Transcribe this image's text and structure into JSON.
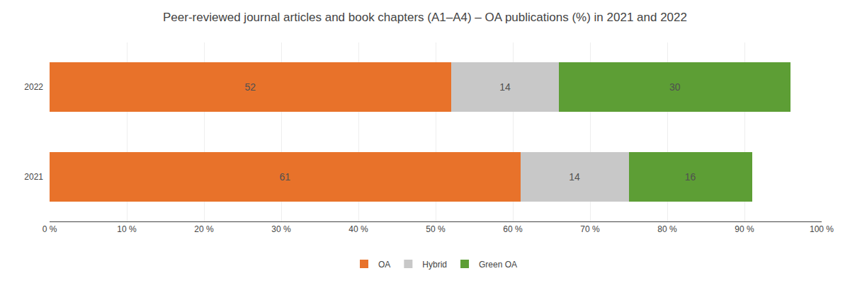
{
  "chart_data": {
    "type": "bar",
    "orientation": "horizontal",
    "stacked": true,
    "title": "Peer-reviewed journal articles and book chapters (A1–A4) – OA publications (%) in 2021 and 2022",
    "categories": [
      "2022",
      "2021"
    ],
    "series": [
      {
        "name": "OA",
        "color": "#E8722A",
        "values": [
          52,
          61
        ]
      },
      {
        "name": "Hybrid",
        "color": "#C8C8C8",
        "values": [
          14,
          14
        ]
      },
      {
        "name": "Green OA",
        "color": "#5D9E35",
        "values": [
          30,
          16
        ]
      }
    ],
    "xlim": [
      0,
      100
    ],
    "xticks": [
      {
        "value": 0,
        "label": "0 %"
      },
      {
        "value": 10,
        "label": "10 %"
      },
      {
        "value": 20,
        "label": "20 %"
      },
      {
        "value": 30,
        "label": "30 %"
      },
      {
        "value": 40,
        "label": "40 %"
      },
      {
        "value": 50,
        "label": "50 %"
      },
      {
        "value": 60,
        "label": "60 %"
      },
      {
        "value": 70,
        "label": "70 %"
      },
      {
        "value": 80,
        "label": "80 %"
      },
      {
        "value": 90,
        "label": "90 %"
      },
      {
        "value": 100,
        "label": "100 %"
      }
    ],
    "grid": true,
    "legend": "bottom",
    "data_labels": true
  }
}
